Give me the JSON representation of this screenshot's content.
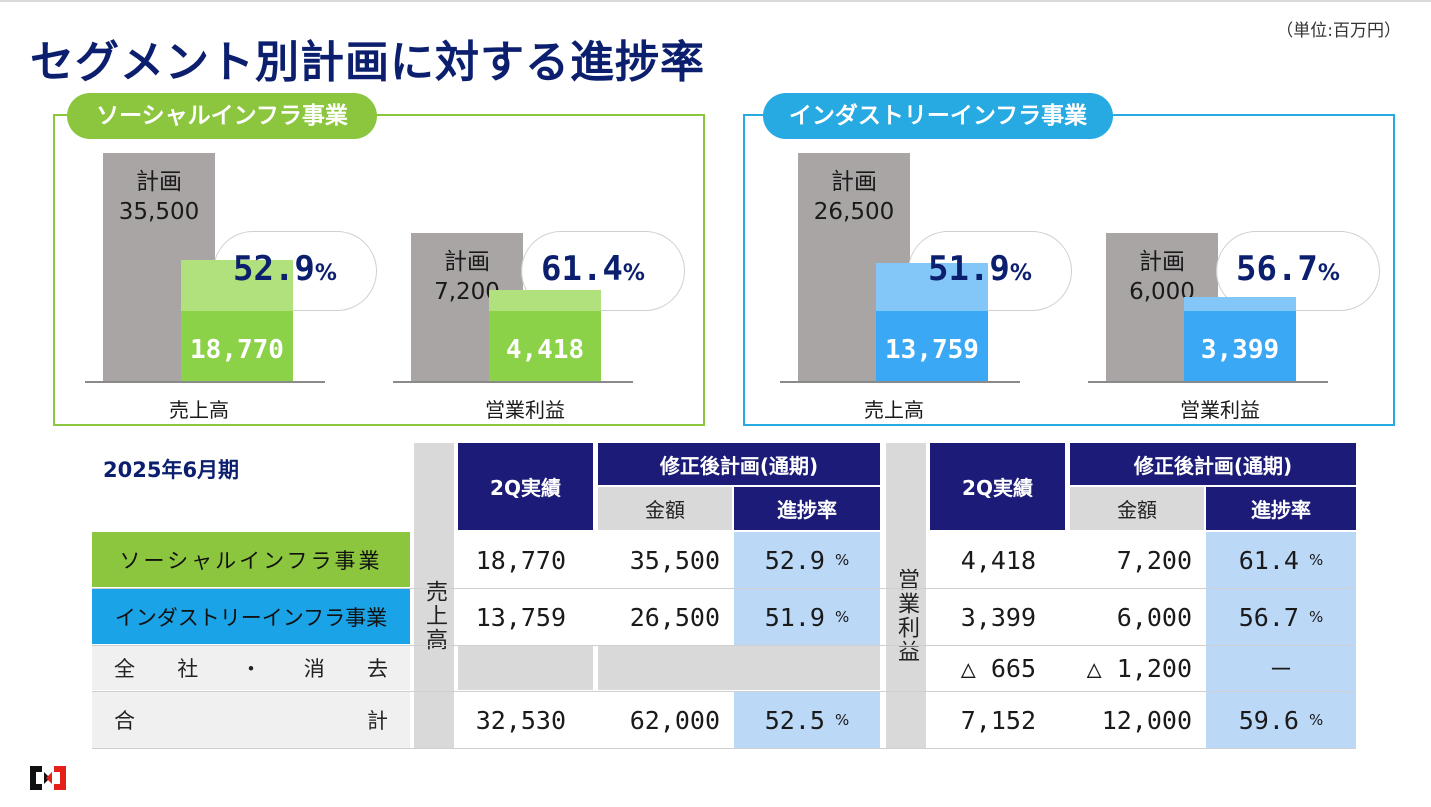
{
  "header": {
    "title": "セグメント別計画に対する進捗率",
    "unit": "（単位:百万円）"
  },
  "chart_data": [
    {
      "type": "bar",
      "title": "ソーシャルインフラ事業",
      "categories": [
        "売上高",
        "営業利益"
      ],
      "series": [
        {
          "name": "計画",
          "values": [
            35500,
            7200
          ],
          "labels": [
            "35,500",
            "7,200"
          ]
        },
        {
          "name": "実績",
          "values": [
            18770,
            4418
          ],
          "labels": [
            "18,770",
            "4,418"
          ]
        }
      ],
      "progress": [
        52.9,
        61.4
      ],
      "progress_labels": [
        "52.9",
        "61.4"
      ],
      "plan_label": "計画",
      "percent_sign": "%",
      "color": "#8cc63f"
    },
    {
      "type": "bar",
      "title": "インダストリーインフラ事業",
      "categories": [
        "売上高",
        "営業利益"
      ],
      "series": [
        {
          "name": "計画",
          "values": [
            26500,
            6000
          ],
          "labels": [
            "26,500",
            "6,000"
          ]
        },
        {
          "name": "実績",
          "values": [
            13759,
            3399
          ],
          "labels": [
            "13,759",
            "3,399"
          ]
        }
      ],
      "progress": [
        51.9,
        56.7
      ],
      "progress_labels": [
        "51.9",
        "56.7"
      ],
      "plan_label": "計画",
      "percent_sign": "%",
      "color": "#27a9e1"
    }
  ],
  "table": {
    "period": "2025年6月期",
    "headers": {
      "actual": "2Q実績",
      "revised": "修正後計画(通期)",
      "amount": "金額",
      "rate": "進捗率"
    },
    "group_labels": {
      "sales": "売上高",
      "profit": "営業利益"
    },
    "percent_sign": "%",
    "rows": [
      {
        "label": "ソーシャルインフラ事業",
        "sales_actual": "18,770",
        "sales_plan": "35,500",
        "sales_rate": "52.9",
        "profit_actual": "4,418",
        "profit_plan": "7,200",
        "profit_rate": "61.4"
      },
      {
        "label": "インダストリーインフラ事業",
        "sales_actual": "13,759",
        "sales_plan": "26,500",
        "sales_rate": "51.9",
        "profit_actual": "3,399",
        "profit_plan": "6,000",
        "profit_rate": "56.7"
      },
      {
        "label_parts": [
          "全",
          "社",
          "・",
          "消",
          "去"
        ],
        "profit_actual": "△ 665",
        "profit_plan": "△ 1,200",
        "profit_rate": "－"
      },
      {
        "label_parts": [
          "合",
          "計"
        ],
        "sales_actual": "32,530",
        "sales_plan": "62,000",
        "sales_rate": "52.5",
        "profit_actual": "7,152",
        "profit_plan": "12,000",
        "profit_rate": "59.6"
      }
    ]
  }
}
